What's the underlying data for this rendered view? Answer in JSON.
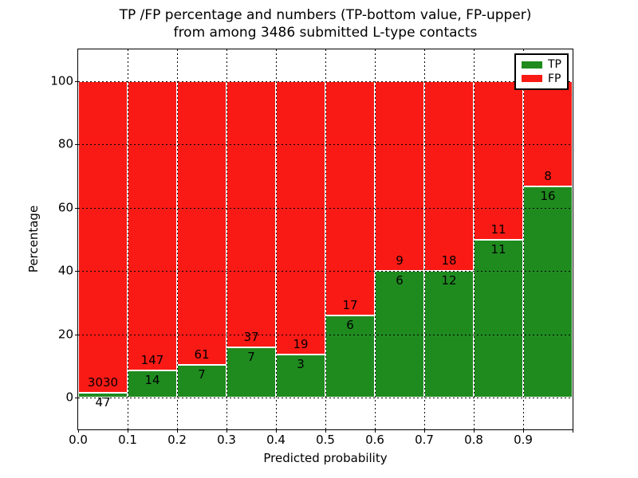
{
  "figure": {
    "title_line1": "TP /FP percentage and numbers (TP-bottom value, FP-upper)",
    "title_line2": "from among 3486 submitted L-type contacts"
  },
  "axes": {
    "xlabel": "Predicted probability",
    "ylabel": "Percentage"
  },
  "legend": {
    "position": "upper-right",
    "entries": [
      {
        "label": "TP",
        "color": "#1f8b1f"
      },
      {
        "label": "FP",
        "color": "#fa1a15"
      }
    ]
  },
  "chart_data": {
    "type": "bar",
    "stacked": true,
    "normalized": "each bin stacks to 100%",
    "title": "TP /FP percentage and numbers (TP-bottom value, FP-upper) from among 3486 submitted L-type contacts",
    "xlabel": "Predicted probability",
    "ylabel": "Percentage",
    "xlim": [
      0.0,
      1.0
    ],
    "ylim": [
      -10,
      110
    ],
    "x_tick_labels": [
      "0.0",
      "0.1",
      "0.2",
      "0.3",
      "0.4",
      "0.5",
      "0.6",
      "0.7",
      "0.8",
      "0.9"
    ],
    "y_ticks": [
      0,
      20,
      40,
      60,
      80,
      100
    ],
    "grid": "dotted black, horizontal at y-ticks and vertical at x-ticks",
    "bin_width": 0.1,
    "bin_starts": [
      0.0,
      0.1,
      0.2,
      0.3,
      0.4,
      0.5,
      0.6,
      0.7,
      0.8,
      0.9
    ],
    "series": [
      {
        "name": "TP",
        "color": "#1f8b1f",
        "counts": [
          47,
          14,
          7,
          7,
          3,
          6,
          6,
          12,
          11,
          16
        ]
      },
      {
        "name": "FP",
        "color": "#fa1a15",
        "counts": [
          3030,
          147,
          61,
          37,
          19,
          17,
          9,
          18,
          11,
          8
        ]
      }
    ],
    "tp_percent": [
      1.53,
      8.7,
      10.29,
      15.91,
      13.64,
      26.09,
      40.0,
      40.0,
      50.0,
      66.67
    ],
    "total_contacts": 3486,
    "annotation_rule": "FP count printed just above the TP/FP boundary, TP count just below it"
  }
}
